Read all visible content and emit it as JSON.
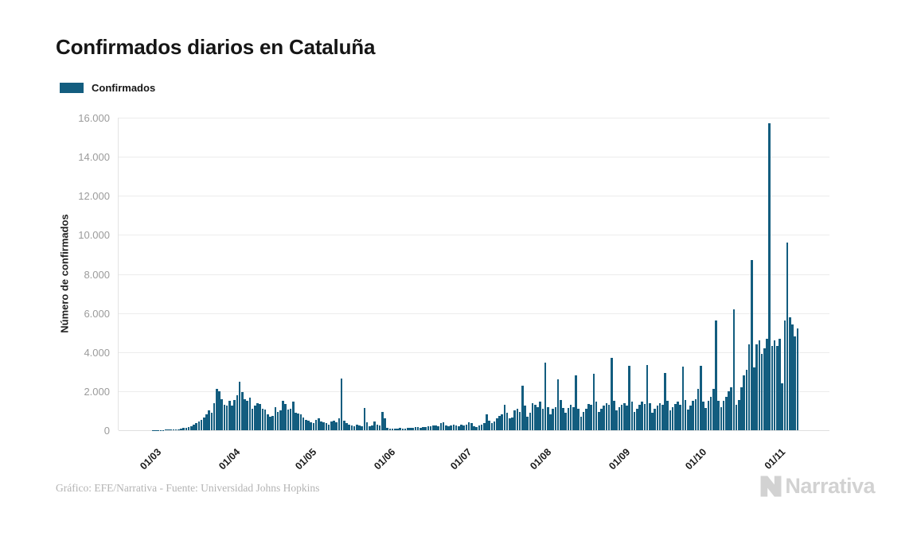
{
  "title": "Confirmados diarios en Cataluña",
  "legend": {
    "label": "Confirmados"
  },
  "footer": {
    "credit": "Gráfico: EFE/Narrativa - Fuente: Universidad Johns Hopkins",
    "logo_text": "Narrativa"
  },
  "colors": {
    "bar": "#135d7f",
    "grid": "#ececec",
    "axis": "#e3e3e3",
    "ytick_text": "#9b9b9b",
    "xtick_text": "#1a1a1a",
    "title_text": "#161616",
    "credit_text": "#b3b3b3",
    "logo": "#d2d2d2"
  },
  "chart_data": {
    "type": "bar",
    "title": "Confirmados diarios en Cataluña",
    "series_name": "Confirmados",
    "xlabel": "",
    "ylabel": "Número de confirmados",
    "ylim": [
      0,
      16000
    ],
    "grid": true,
    "legend_position": "top-left",
    "bar_color": "#135d7f",
    "yticks": [
      {
        "label": "0",
        "value": 0
      },
      {
        "label": "2.000",
        "value": 2000
      },
      {
        "label": "4.000",
        "value": 4000
      },
      {
        "label": "6.000",
        "value": 6000
      },
      {
        "label": "8.000",
        "value": 8000
      },
      {
        "label": "10.000",
        "value": 10000
      },
      {
        "label": "12.000",
        "value": 12000
      },
      {
        "label": "14.000",
        "value": 14000
      },
      {
        "label": "16.000",
        "value": 16000
      }
    ],
    "xticks": [
      {
        "label": "01/03",
        "day": 0
      },
      {
        "label": "01/04",
        "day": 31
      },
      {
        "label": "01/05",
        "day": 61
      },
      {
        "label": "01/06",
        "day": 92
      },
      {
        "label": "01/07",
        "day": 122
      },
      {
        "label": "01/08",
        "day": 153
      },
      {
        "label": "01/09",
        "day": 184
      },
      {
        "label": "01/10",
        "day": 214
      },
      {
        "label": "01/11",
        "day": 245
      }
    ],
    "x_start": "01/03/2020 (daily bars, estimated values)",
    "values": [
      2,
      3,
      4,
      5,
      8,
      10,
      15,
      20,
      30,
      45,
      60,
      80,
      110,
      140,
      170,
      220,
      280,
      350,
      430,
      520,
      650,
      800,
      1000,
      900,
      1400,
      2100,
      2000,
      1600,
      1300,
      1250,
      1500,
      1250,
      1550,
      1800,
      2500,
      1950,
      1600,
      1500,
      1650,
      1100,
      1250,
      1400,
      1350,
      1100,
      1050,
      800,
      700,
      750,
      1200,
      950,
      1000,
      1500,
      1350,
      1050,
      1100,
      1450,
      900,
      850,
      800,
      650,
      550,
      500,
      400,
      350,
      550,
      600,
      450,
      400,
      350,
      300,
      450,
      500,
      400,
      600,
      2650,
      500,
      350,
      300,
      250,
      200,
      300,
      250,
      200,
      1150,
      400,
      200,
      250,
      450,
      300,
      250,
      950,
      600,
      120,
      80,
      70,
      90,
      100,
      110,
      90,
      100,
      120,
      130,
      140,
      150,
      160,
      140,
      150,
      180,
      200,
      220,
      250,
      230,
      200,
      350,
      400,
      250,
      220,
      250,
      280,
      250,
      220,
      300,
      250,
      300,
      400,
      350,
      200,
      180,
      250,
      300,
      350,
      800,
      500,
      350,
      450,
      600,
      750,
      800,
      1300,
      900,
      600,
      650,
      1000,
      1100,
      950,
      2300,
      1250,
      700,
      900,
      1400,
      1300,
      1200,
      1450,
      1100,
      3450,
      1200,
      800,
      1100,
      1200,
      2600,
      1550,
      1150,
      900,
      1150,
      1300,
      1200,
      2800,
      1100,
      700,
      950,
      1100,
      1350,
      1300,
      2900,
      1450,
      950,
      1100,
      1250,
      1400,
      1300,
      3700,
      1500,
      1000,
      1200,
      1300,
      1400,
      1250,
      3300,
      1450,
      950,
      1100,
      1300,
      1450,
      1350,
      3350,
      1400,
      900,
      1100,
      1250,
      1400,
      1300,
      2950,
      1500,
      1000,
      1200,
      1350,
      1450,
      1300,
      3250,
      1550,
      1050,
      1250,
      1500,
      1600,
      2100,
      3300,
      1450,
      1150,
      1500,
      1700,
      2100,
      5600,
      1500,
      1200,
      1500,
      1700,
      2000,
      2200,
      6200,
      1300,
      1550,
      2200,
      2800,
      3100,
      4400,
      8700,
      3200,
      4400,
      4600,
      3900,
      4200,
      4700,
      15700,
      4300,
      4600,
      4300,
      4700,
      2400,
      5600,
      9600,
      5800,
      5400,
      4800,
      5200
    ]
  }
}
